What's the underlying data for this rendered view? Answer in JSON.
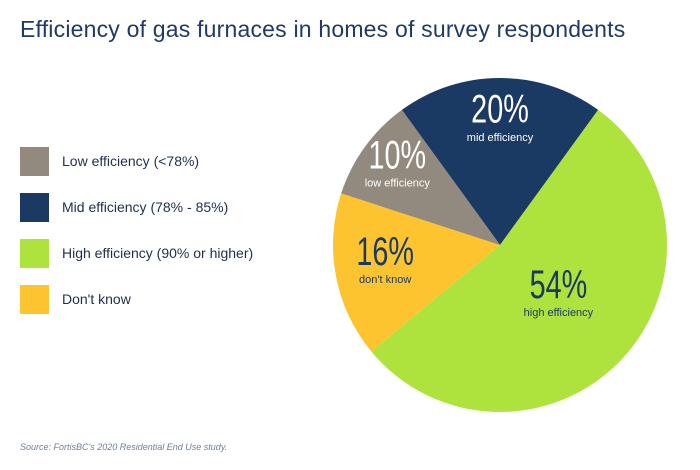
{
  "chart_data": {
    "type": "pie",
    "title": "Efficiency of gas furnaces in homes of survey respondents",
    "slices": [
      {
        "legend": "Mid efficiency (78% - 85%)",
        "value": 20,
        "value_label": "20%",
        "slice_label": "mid efficiency",
        "color": "#1b3a63"
      },
      {
        "legend": "High efficiency (90% or higher)",
        "value": 54,
        "value_label": "54%",
        "slice_label": "high efficiency",
        "color": "#aee23c"
      },
      {
        "legend": "Don't know",
        "value": 16,
        "value_label": "16%",
        "slice_label": "don't know",
        "color": "#fdc430"
      },
      {
        "legend": "Low efficiency (<78%)",
        "value": 10,
        "value_label": "10%",
        "slice_label": "low efficiency",
        "color": "#928a7f"
      }
    ],
    "legend_order": [
      3,
      0,
      1,
      2
    ],
    "legend_placement": "left",
    "source": "Source: FortisBC's 2020 Residential End Use study."
  }
}
